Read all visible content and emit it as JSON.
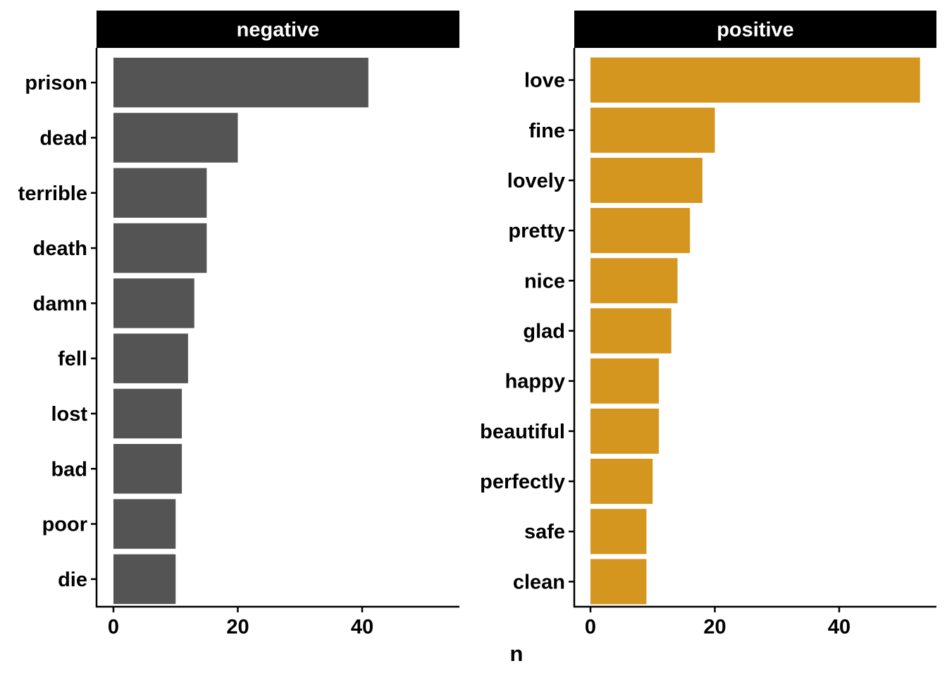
{
  "chart_data": {
    "type": "bar",
    "orientation": "horizontal",
    "xlabel": "n",
    "ylabel": "",
    "xlim": [
      0,
      55
    ],
    "xticks": [
      0,
      20,
      40
    ],
    "grid": false,
    "legend": "none",
    "panels": [
      {
        "title": "negative",
        "color": "#545454",
        "categories": [
          "prison",
          "dead",
          "terrible",
          "death",
          "damn",
          "fell",
          "lost",
          "bad",
          "poor",
          "die"
        ],
        "values": [
          41,
          20,
          15,
          15,
          13,
          12,
          11,
          11,
          10,
          10
        ]
      },
      {
        "title": "positive",
        "color": "#D4961E",
        "categories": [
          "love",
          "fine",
          "lovely",
          "pretty",
          "nice",
          "glad",
          "happy",
          "beautiful",
          "perfectly",
          "safe",
          "clean"
        ],
        "values": [
          53,
          20,
          18,
          16,
          14,
          13,
          11,
          11,
          10,
          9,
          9
        ]
      }
    ]
  }
}
